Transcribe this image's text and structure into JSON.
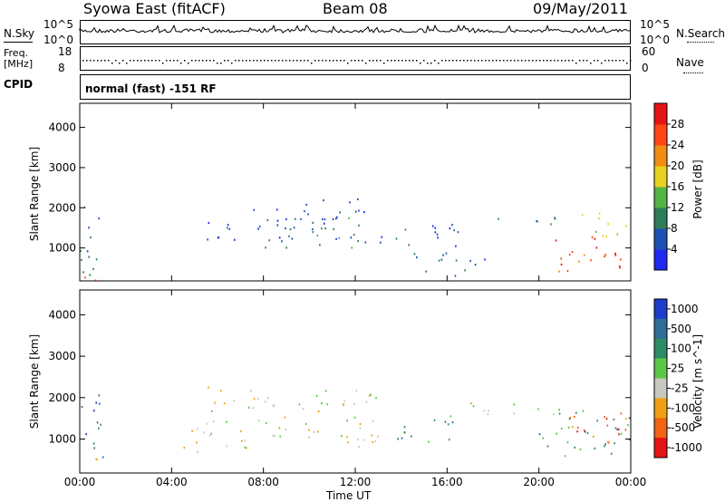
{
  "header": {
    "station": "Syowa East (fitACF)",
    "beam": "Beam 08",
    "date": "09/May/2011"
  },
  "strips": {
    "nsky_label": "N.Sky",
    "nsky_ticks": [
      "10^5",
      "10^0"
    ],
    "nsearch_label": "N.Search",
    "nsearch_ticks": [
      "10^5",
      "10^0"
    ],
    "freq_label_1": "Freq.",
    "freq_label_2": "[MHz]",
    "freq_ticks": [
      "18",
      "8"
    ],
    "nave_label": "Nave",
    "nave_ticks": [
      "60",
      "0"
    ],
    "cpid_label": "CPID",
    "cpid_text": "normal (fast) -151 RF"
  },
  "x_axis": {
    "title": "Time UT",
    "ticks": [
      "00:00",
      "04:00",
      "08:00",
      "12:00",
      "16:00",
      "20:00",
      "00:00"
    ]
  },
  "chart_data": [
    {
      "type": "heatmap",
      "panel": "power",
      "ylabel": "Slant Range [km]",
      "y_ticks": [
        1000,
        2000,
        3000,
        4000
      ],
      "ylim": [
        180,
        4600
      ],
      "xlim_hours": [
        0,
        24
      ],
      "colorbar_title": "Power [dB]",
      "colorbar_ticks": [
        "4",
        "8",
        "12",
        "16",
        "20",
        "24",
        "28"
      ],
      "colors": [
        "#1e28f0",
        "#1e50b4",
        "#2e7d5a",
        "#55b446",
        "#e6d21e",
        "#f08c14",
        "#ff4614",
        "#e61414"
      ],
      "regions": [
        {
          "t0": 0.0,
          "t1": 1.0,
          "r0": 200,
          "r1": 2100,
          "level": 2
        },
        {
          "t0": 0.2,
          "t1": 0.9,
          "r0": 200,
          "r1": 600,
          "level": 6
        },
        {
          "t0": 5.5,
          "t1": 11.5,
          "r0": 1200,
          "r1": 2000,
          "level": 1
        },
        {
          "t0": 8.0,
          "t1": 12.5,
          "r0": 1000,
          "r1": 1800,
          "level": 2
        },
        {
          "t0": 9.5,
          "t1": 12.5,
          "r0": 1900,
          "r1": 2300,
          "level": 1
        },
        {
          "t0": 13.0,
          "t1": 16.5,
          "r0": 1000,
          "r1": 1700,
          "level": 1
        },
        {
          "t0": 14.5,
          "t1": 18.0,
          "r0": 300,
          "r1": 900,
          "level": 1
        },
        {
          "t0": 17.5,
          "t1": 22.0,
          "r0": 1600,
          "r1": 1800,
          "level": 2
        },
        {
          "t0": 20.5,
          "t1": 24.0,
          "r0": 400,
          "r1": 1300,
          "level": 6
        },
        {
          "t0": 21.5,
          "t1": 24.0,
          "r0": 1300,
          "r1": 1900,
          "level": 4
        }
      ]
    },
    {
      "type": "heatmap",
      "panel": "velocity",
      "ylabel": "Slant Range [km]",
      "y_ticks": [
        1000,
        2000,
        3000,
        4000
      ],
      "ylim": [
        180,
        4600
      ],
      "xlim_hours": [
        0,
        24
      ],
      "colorbar_title": "Velocity [m s^-1]",
      "colorbar_ticks": [
        "1000",
        "500",
        "100",
        "25",
        "-25",
        "-100",
        "-500",
        "-1000"
      ],
      "colors": [
        "#1e3cc8",
        "#2e6e96",
        "#2e8c64",
        "#5ac846",
        "#c8c8c0",
        "#f0a014",
        "#f06414",
        "#e61414"
      ],
      "regions": [
        {
          "t0": 0.0,
          "t1": 1.0,
          "r0": 200,
          "r1": 2100,
          "level": 1
        },
        {
          "t0": 0.2,
          "t1": 0.9,
          "r0": 200,
          "r1": 600,
          "level": 5
        },
        {
          "t0": 4.5,
          "t1": 5.5,
          "r0": 700,
          "r1": 1600,
          "level": 5
        },
        {
          "t0": 5.5,
          "t1": 13.0,
          "r0": 800,
          "r1": 2300,
          "level": 4
        },
        {
          "t0": 13.5,
          "t1": 16.5,
          "r0": 900,
          "r1": 1600,
          "level": 2
        },
        {
          "t0": 16.0,
          "t1": 22.0,
          "r0": 1600,
          "r1": 1900,
          "level": 4
        },
        {
          "t0": 20.0,
          "t1": 24.0,
          "r0": 600,
          "r1": 1700,
          "level": 2
        },
        {
          "t0": 21.0,
          "t1": 24.0,
          "r0": 800,
          "r1": 1700,
          "level": 6
        }
      ]
    }
  ]
}
